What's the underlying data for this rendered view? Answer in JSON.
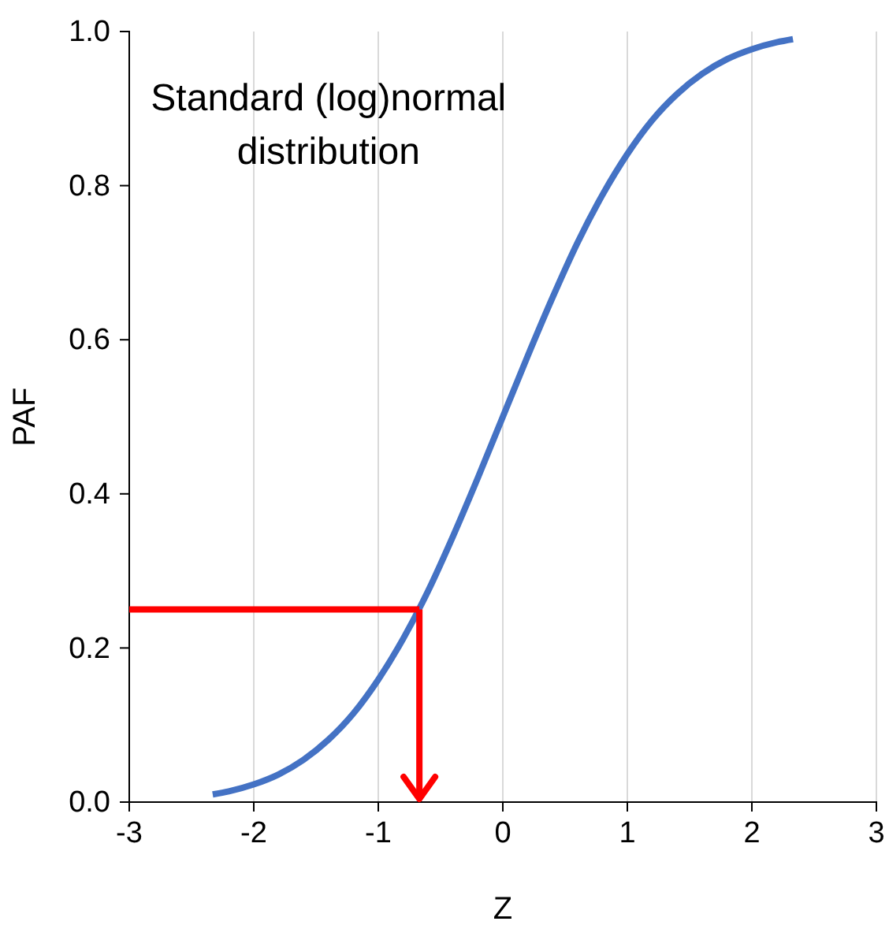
{
  "chart_data": {
    "type": "line",
    "xlabel": "Z",
    "ylabel": "PAF",
    "xlim": [
      -3,
      3
    ],
    "xticks": [
      -3,
      -2,
      -1,
      0,
      1,
      2,
      3
    ],
    "ylim": [
      0,
      1
    ],
    "yticks": [
      {
        "value": 0,
        "label": "0.0"
      },
      {
        "value": 0.2,
        "label": "0.2"
      },
      {
        "value": 0.4,
        "label": "0.4"
      },
      {
        "value": 0.6,
        "label": "0.6"
      },
      {
        "value": 0.8,
        "label": "0.8"
      },
      {
        "value": 1,
        "label": "1.0"
      }
    ],
    "grid": "x",
    "marker": "none",
    "line_style": "solid",
    "ref_lines": [
      {
        "axis": "y",
        "value": 0.25,
        "color": "#ff0000"
      },
      {
        "axis": "x",
        "value": -0.67,
        "color": "#ff0000"
      }
    ],
    "annotations": [
      "Standard (log)normal\ndistribution"
    ],
    "series": [
      {
        "color": "#4472c4",
        "x": [
          -2.33,
          -2.2,
          -2,
          -1.8,
          -1.6,
          -1.4,
          -1.2,
          -1,
          -0.8,
          -0.6,
          -0.4,
          -0.2,
          0,
          0.2,
          0.4,
          0.6,
          0.8,
          1,
          1.2,
          1.4,
          1.6,
          1.8,
          2,
          2.2,
          2.33
        ],
        "values": [
          0.01,
          0.014,
          0.023,
          0.036,
          0.055,
          0.081,
          0.115,
          0.159,
          0.212,
          0.274,
          0.345,
          0.421,
          0.5,
          0.579,
          0.655,
          0.726,
          0.788,
          0.841,
          0.885,
          0.919,
          0.945,
          0.964,
          0.977,
          0.986,
          0.99
        ]
      }
    ]
  }
}
